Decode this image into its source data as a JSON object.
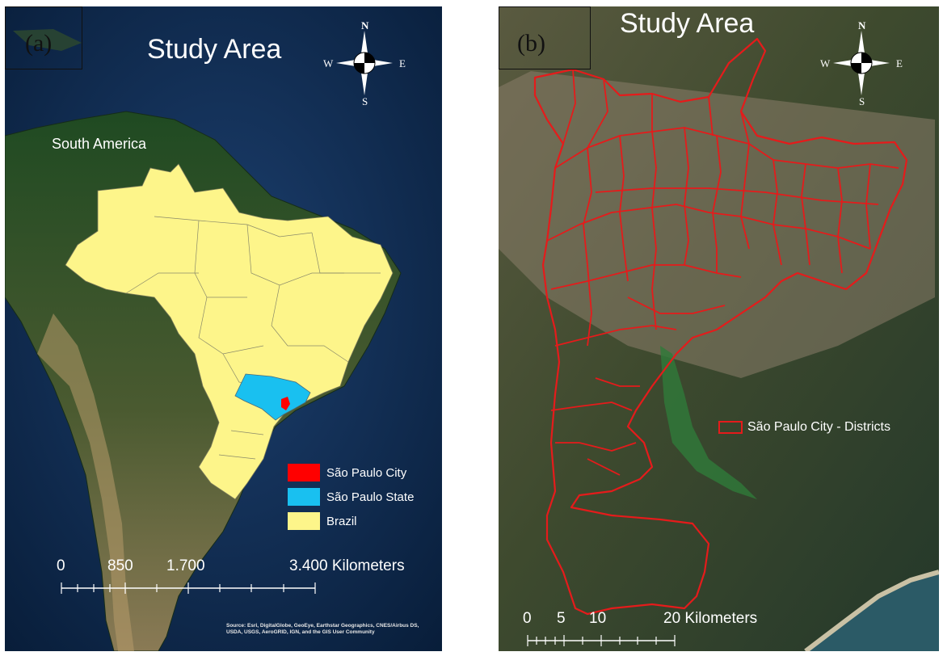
{
  "panel_a": {
    "tag": "(a)",
    "title": "Study Area",
    "compass": {
      "n": "N",
      "s": "S",
      "e": "E",
      "w": "W"
    },
    "continent_label": "South America",
    "legend": [
      {
        "label": "São Paulo City",
        "color": "#ff0000"
      },
      {
        "label": "São Paulo State",
        "color": "#19c0f0"
      },
      {
        "label": "Brazil",
        "color": "#fdf58a"
      }
    ],
    "scale": {
      "ticks": [
        "0",
        "850",
        "1.700",
        "3.400 Kilometers"
      ]
    },
    "sources": "Source: Esri, DigitalGlobe, GeoEye, Earthstar Geographics, CNES/Airbus DS, USDA, USGS, AeroGRID, IGN, and the GIS User Community"
  },
  "panel_b": {
    "tag": "(b)",
    "title": "Study Area",
    "compass": {
      "n": "N",
      "s": "S",
      "e": "E",
      "w": "W"
    },
    "legend_label": "São Paulo City - Districts",
    "district_color": "#e51b1b",
    "scale": {
      "ticks": [
        "0",
        "5",
        "10",
        "20 Kilometers"
      ]
    }
  },
  "colors": {
    "ocean": "#0b2748",
    "land": "#3e5a2c",
    "brazil": "#fdf58a",
    "sp_state": "#19c0f0",
    "sp_city": "#ff0000",
    "district": "#e51b1b"
  }
}
